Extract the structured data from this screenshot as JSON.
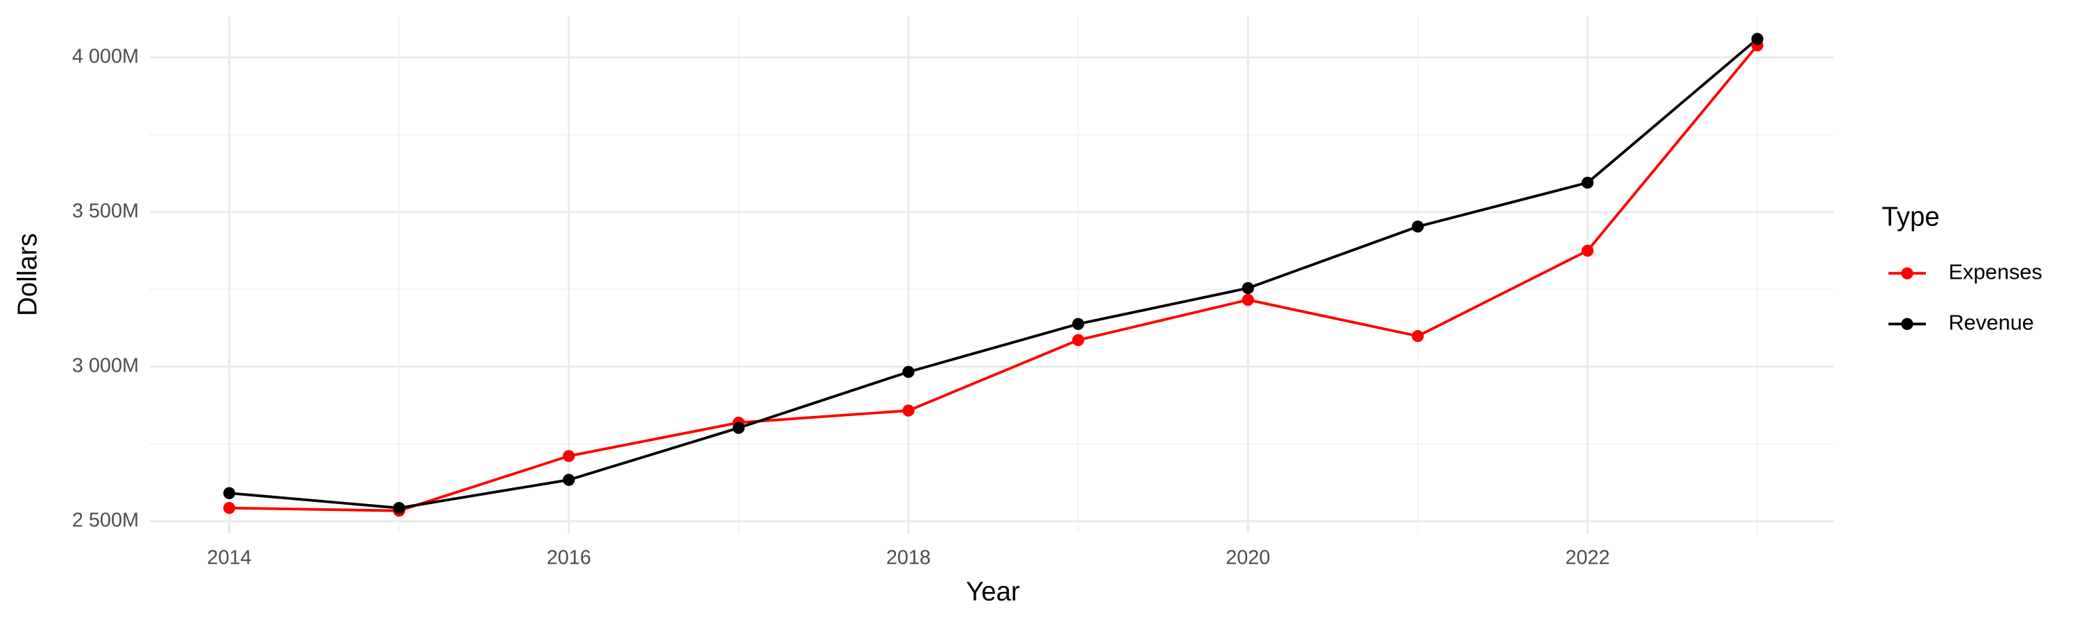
{
  "chart_data": {
    "type": "line",
    "x_label": "Year",
    "y_label": "Dollars",
    "legend_title": "Type",
    "legend_position": "right",
    "grid": true,
    "x": [
      2014,
      2015,
      2016,
      2017,
      2018,
      2019,
      2020,
      2021,
      2022,
      2023
    ],
    "series": [
      {
        "name": "Expenses",
        "color": "#ff0000",
        "values": [
          2543,
          2534,
          2711,
          2819,
          2858,
          3086,
          3216,
          3099,
          3375,
          4039
        ]
      },
      {
        "name": "Revenue",
        "color": "#000000",
        "values": [
          2591,
          2543,
          2634,
          2802,
          2983,
          3138,
          3254,
          3453,
          3595,
          4060
        ]
      }
    ],
    "xlim": [
      2013.53,
      2023.45
    ],
    "xticks": [
      2014,
      2016,
      2018,
      2020,
      2022
    ],
    "minor_xticks": [
      2015,
      2017,
      2019,
      2021,
      2023
    ],
    "ylim": [
      2461,
      4134
    ],
    "yticks": [
      {
        "value": 2500,
        "label": "2 500M"
      },
      {
        "value": 3000,
        "label": "3 000M"
      },
      {
        "value": 3500,
        "label": "3 500M"
      },
      {
        "value": 4000,
        "label": "4 000M"
      }
    ],
    "minor_yticks": [
      2750,
      3250,
      3750
    ]
  }
}
